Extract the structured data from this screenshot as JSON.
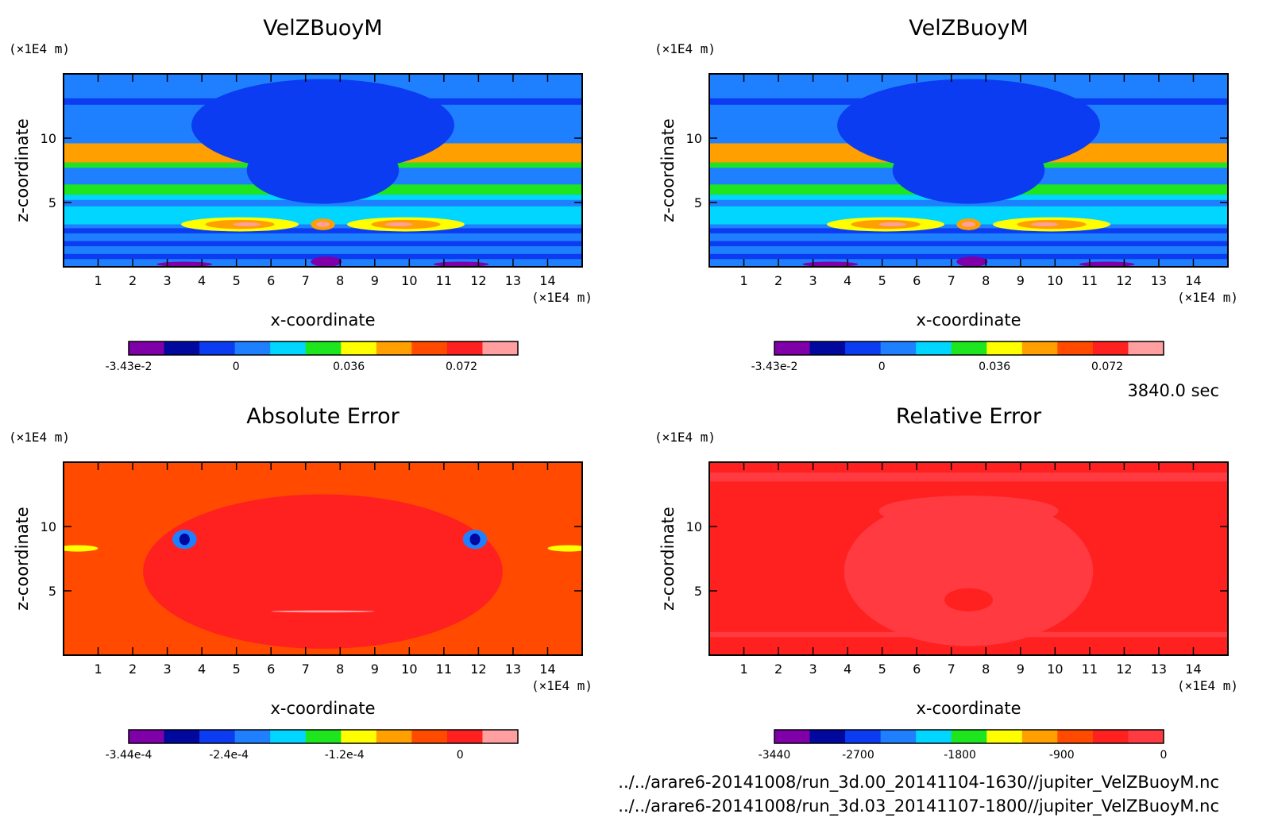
{
  "time_label": "3840.0 sec",
  "files": [
    "../../arare6-20141008/run_3d.00_20141104-1630//jupiter_VelZBuoyM.nc",
    "../../arare6-20141008/run_3d.03_20141107-1800//jupiter_VelZBuoyM.nc"
  ],
  "colors": {
    "velz": [
      "#7f00a8",
      "#00089e",
      "#0b3cf2",
      "#1f80ff",
      "#00d6ff",
      "#1ee61e",
      "#ffff00",
      "#ff9f00",
      "#ff4a00",
      "#ff2020",
      "#ff9fa0"
    ],
    "abs": [
      "#7f00a8",
      "#00089e",
      "#0b3cf2",
      "#1f80ff",
      "#00d6ff",
      "#1ee61e",
      "#ffff00",
      "#ff9f00",
      "#ff4a00",
      "#ff2020",
      "#ff9fa0"
    ],
    "rel": [
      "#7f00a8",
      "#00089e",
      "#0b3cf2",
      "#1f80ff",
      "#00d6ff",
      "#1ee61e",
      "#ffff00",
      "#ff9f00",
      "#ff4a00",
      "#ff2020",
      "#ff3a40"
    ]
  },
  "chart_data": [
    {
      "type": "heatmap",
      "title": "VelZBuoyM",
      "xlabel": "x-coordinate",
      "ylabel": "z-coordinate",
      "x_unit": "(×1E4 m)",
      "y_unit": "(×1E4 m)",
      "xlim": [
        0,
        15
      ],
      "ylim": [
        0,
        15
      ],
      "x_ticks": [
        "1",
        "2",
        "3",
        "4",
        "5",
        "6",
        "7",
        "8",
        "9",
        "10",
        "11",
        "12",
        "13",
        "14"
      ],
      "y_ticks": [
        "5",
        "10"
      ],
      "colorbar_ticks": [
        "-3.43e-2",
        "0",
        "0.036",
        "0.072"
      ],
      "colorbar_range": [
        -0.0343,
        0.09
      ]
    },
    {
      "type": "heatmap",
      "title": "VelZBuoyM",
      "xlabel": "x-coordinate",
      "ylabel": "z-coordinate",
      "x_unit": "(×1E4 m)",
      "y_unit": "(×1E4 m)",
      "xlim": [
        0,
        15
      ],
      "ylim": [
        0,
        15
      ],
      "x_ticks": [
        "1",
        "2",
        "3",
        "4",
        "5",
        "6",
        "7",
        "8",
        "9",
        "10",
        "11",
        "12",
        "13",
        "14"
      ],
      "y_ticks": [
        "5",
        "10"
      ],
      "colorbar_ticks": [
        "-3.43e-2",
        "0",
        "0.036",
        "0.072"
      ],
      "colorbar_range": [
        -0.0343,
        0.09
      ]
    },
    {
      "type": "heatmap",
      "title": "Absolute Error",
      "xlabel": "x-coordinate",
      "ylabel": "z-coordinate",
      "x_unit": "(×1E4 m)",
      "y_unit": "(×1E4 m)",
      "xlim": [
        0,
        15
      ],
      "ylim": [
        0,
        15
      ],
      "x_ticks": [
        "1",
        "2",
        "3",
        "4",
        "5",
        "6",
        "7",
        "8",
        "9",
        "10",
        "11",
        "12",
        "13",
        "14"
      ],
      "y_ticks": [
        "5",
        "10"
      ],
      "colorbar_ticks": [
        "-3.44e-4",
        "-2.4e-4",
        "-1.2e-4",
        "0"
      ],
      "colorbar_range": [
        -0.000344,
        6e-05
      ]
    },
    {
      "type": "heatmap",
      "title": "Relative Error",
      "xlabel": "x-coordinate",
      "ylabel": "z-coordinate",
      "x_unit": "(×1E4 m)",
      "y_unit": "(×1E4 m)",
      "xlim": [
        0,
        15
      ],
      "ylim": [
        0,
        15
      ],
      "x_ticks": [
        "1",
        "2",
        "3",
        "4",
        "5",
        "6",
        "7",
        "8",
        "9",
        "10",
        "11",
        "12",
        "13",
        "14"
      ],
      "y_ticks": [
        "5",
        "10"
      ],
      "colorbar_ticks": [
        "-3440",
        "-2700",
        "-1800",
        "-900",
        "0"
      ],
      "colorbar_range": [
        -3440,
        0
      ]
    }
  ]
}
